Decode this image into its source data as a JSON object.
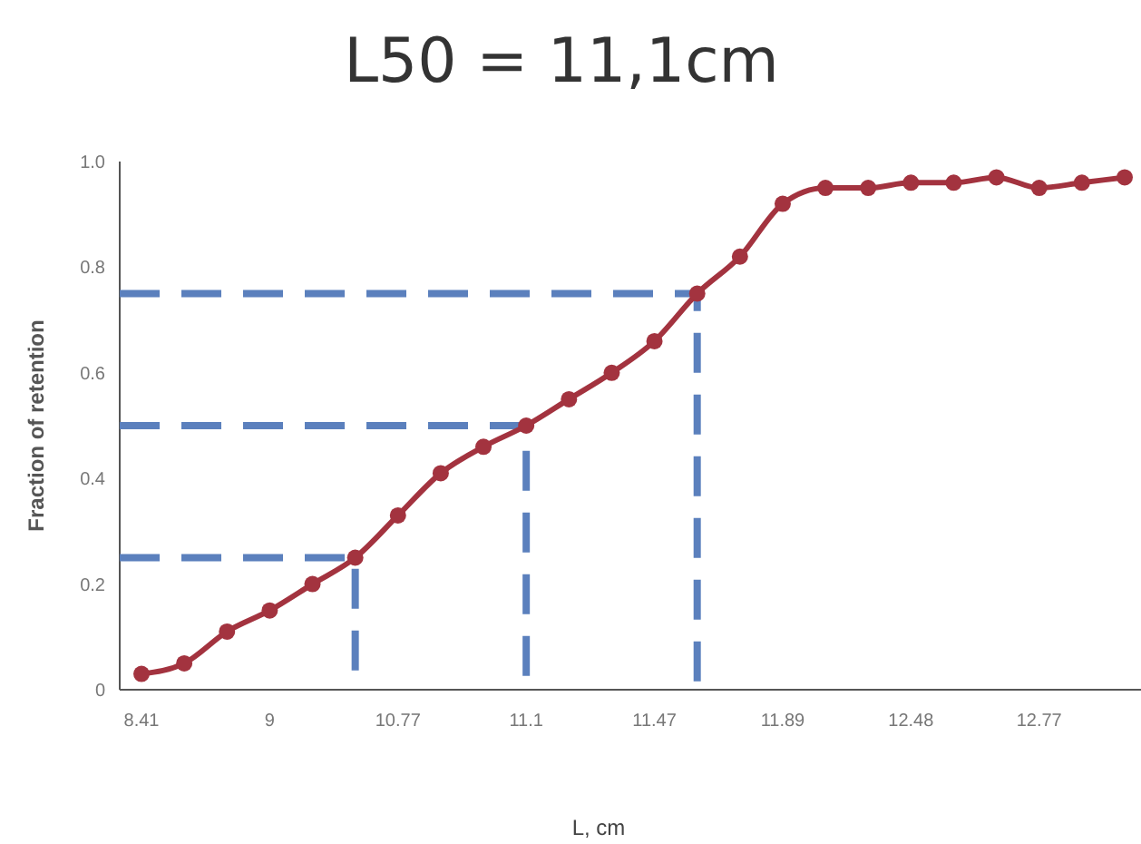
{
  "chart_data": {
    "type": "line",
    "title": "L50 = 11,1cm",
    "xlabel": "L, cm",
    "ylabel": "Fraction of retention",
    "categories": [
      "8.41",
      null,
      null,
      "9",
      null,
      null,
      "10.77",
      null,
      null,
      "11.1",
      null,
      null,
      "11.47",
      null,
      null,
      "11.89",
      null,
      null,
      "12.48",
      null,
      null,
      "12.77",
      null,
      null
    ],
    "series": [
      {
        "color": "#a3333f",
        "values": [
          0.03,
          0.05,
          0.11,
          0.15,
          0.2,
          0.25,
          0.33,
          0.41,
          0.46,
          0.5,
          0.55,
          0.6,
          0.66,
          0.75,
          0.82,
          0.92,
          0.95,
          0.95,
          0.96,
          0.96,
          0.97,
          0.95,
          0.96,
          0.97
        ]
      }
    ],
    "ylim": [
      0,
      1
    ],
    "yticks": [
      0,
      0.2,
      0.4,
      0.6,
      0.8,
      {
        "value": 1,
        "label": "1.0"
      }
    ],
    "ref_lines": [
      {
        "axis": "y",
        "value": 0.25,
        "color": "#5b80bd",
        "line_style": "dashed"
      },
      {
        "axis": "y",
        "value": 0.5,
        "color": "#5b80bd",
        "line_style": "dashed"
      },
      {
        "axis": "y",
        "value": 0.75,
        "color": "#5b80bd",
        "line_style": "dashed"
      }
    ],
    "marker": "circle"
  }
}
